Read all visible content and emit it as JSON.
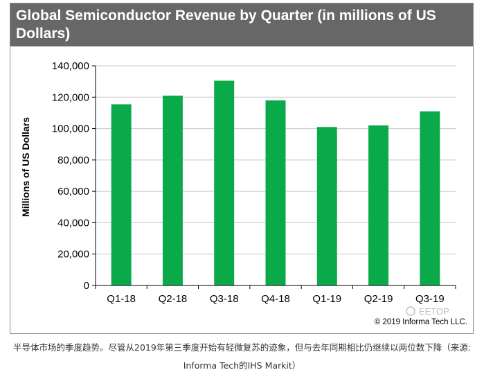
{
  "chart_data": {
    "type": "bar",
    "title": "Global Semiconductor Revenue by Quarter (in millions  of US Dollars)",
    "xlabel": "",
    "ylabel": "Millions  of US Dollars",
    "categories": [
      "Q1-18",
      "Q2-18",
      "Q3-18",
      "Q4-18",
      "Q1-19",
      "Q2-19",
      "Q3-19"
    ],
    "values": [
      115500,
      121000,
      130500,
      118000,
      101000,
      102000,
      111000
    ],
    "ylim": [
      0,
      140000
    ],
    "yticks": [
      0,
      20000,
      40000,
      60000,
      80000,
      100000,
      120000,
      140000
    ],
    "ytick_labels": [
      "0",
      "20,000",
      "40,000",
      "60,000",
      "80,000",
      "100,000",
      "120,000",
      "140,000"
    ],
    "grid": true,
    "bar_color": "#0aaa4b",
    "title_bar_color": "#676767",
    "copyright": "© 2019 Informa Tech LLC.",
    "watermark": "EETOP"
  },
  "caption": {
    "line1": "半导体市场的季度趋势。尽管从2019年第三季度开始有轻微复苏的迹象，但与去年同期相比仍继续以两位数下降（来源:",
    "line2": "Informa Tech的IHS Markit）"
  }
}
